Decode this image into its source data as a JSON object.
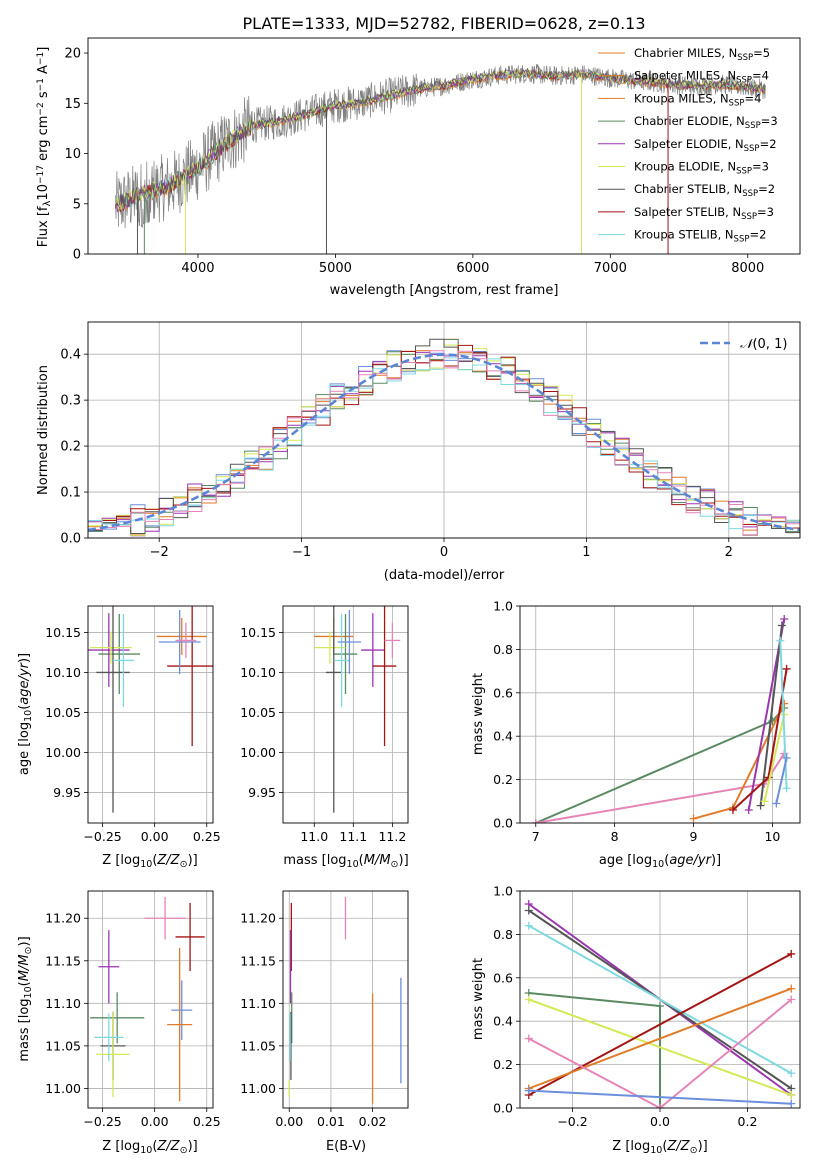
{
  "colors": {
    "blue": "#6a8fdc",
    "orange": "#e07b2a",
    "green": "#5a8a62",
    "purple": "#9b35b0",
    "yellow": "#d4e85a",
    "grey": "#555555",
    "red": "#a31515",
    "cyan": "#7fd8e0",
    "pink": "#e584b6",
    "teal": "#7fe0c8",
    "spectrum": "#808080"
  },
  "chart_data": [
    {
      "id": "spectrum",
      "type": "line",
      "title": "PLATE=1333, MJD=52782, FIBERID=0628, z=0.13",
      "xlabel": "wavelength [Angstrom, rest frame]",
      "ylabel": "Flux [f",
      "xlim": [
        3200,
        8380
      ],
      "ylim": [
        0,
        21.5
      ],
      "xticks": [
        "4000",
        "5000",
        "6000",
        "7000",
        "8000"
      ],
      "yticks": [
        "0",
        "5",
        "10",
        "15",
        "20"
      ],
      "legend": [
        {
          "label": "Chabrier MILES, N",
          "nssp": "=5",
          "color": "orange"
        },
        {
          "label": "Salpeter MILES, N",
          "nssp": "=4",
          "color": "orange"
        },
        {
          "label": "Kroupa MILES, N",
          "nssp": "=4",
          "color": "orange"
        },
        {
          "label": "Chabrier ELODIE, N",
          "nssp": "=3",
          "color": "green"
        },
        {
          "label": "Salpeter ELODIE, N",
          "nssp": "=2",
          "color": "purple"
        },
        {
          "label": "Kroupa ELODIE, N",
          "nssp": "=3",
          "color": "yellow"
        },
        {
          "label": "Chabrier STELIB, N",
          "nssp": "=2",
          "color": "grey"
        },
        {
          "label": "Salpeter STELIB, N",
          "nssp": "=3",
          "color": "red"
        },
        {
          "label": "Kroupa STELIB, N",
          "nssp": "=2",
          "color": "cyan"
        }
      ],
      "continuum": [
        [
          3400,
          4.8
        ],
        [
          3600,
          6.0
        ],
        [
          3800,
          6.8
        ],
        [
          4000,
          8.6
        ],
        [
          4200,
          11.0
        ],
        [
          4400,
          12.8
        ],
        [
          4600,
          13.2
        ],
        [
          4800,
          14.0
        ],
        [
          5000,
          14.8
        ],
        [
          5200,
          15.1
        ],
        [
          5400,
          15.8
        ],
        [
          5600,
          16.4
        ],
        [
          5800,
          16.8
        ],
        [
          6000,
          17.4
        ],
        [
          6200,
          17.8
        ],
        [
          6400,
          18.0
        ],
        [
          6600,
          17.7
        ],
        [
          6800,
          17.9
        ],
        [
          7000,
          17.5
        ],
        [
          7200,
          17.2
        ],
        [
          7400,
          17.0
        ],
        [
          7600,
          16.7
        ],
        [
          7800,
          16.9
        ],
        [
          8000,
          16.6
        ],
        [
          8130,
          16.4
        ]
      ],
      "dropouts": [
        {
          "x": 3560,
          "color": "grey"
        },
        {
          "x": 3610,
          "color": "green"
        },
        {
          "x": 3910,
          "color": "yellow"
        },
        {
          "x": 4935,
          "color": "grey"
        },
        {
          "x": 6790,
          "color": "yellow"
        },
        {
          "x": 7420,
          "color": "red"
        }
      ]
    },
    {
      "id": "residuals",
      "type": "bar",
      "xlabel": "(data-model)/error",
      "ylabel": "Normed distribution",
      "xlim": [
        -2.5,
        2.5
      ],
      "ylim": [
        0,
        0.47
      ],
      "xticks": [
        "-2",
        "-1",
        "0",
        "1",
        "2"
      ],
      "yticks": [
        "0.0",
        "0.1",
        "0.2",
        "0.3",
        "0.4"
      ],
      "bin_width": 0.1,
      "legend": "N(0,1)",
      "series_colors": [
        "blue",
        "orange",
        "green",
        "purple",
        "yellow",
        "grey",
        "red",
        "cyan",
        "pink"
      ]
    },
    {
      "id": "z-age",
      "type": "scatter",
      "xlabel": "Z [log",
      "ylabel": "age  [log",
      "xlim": [
        -0.32,
        0.28
      ],
      "ylim": [
        9.912,
        10.183
      ],
      "xticks": [
        "-0.25",
        "0.00",
        "0.25"
      ],
      "yticks": [
        "9.95",
        "10.00",
        "10.05",
        "10.10",
        "10.15"
      ],
      "points": [
        {
          "x": 0.13,
          "y": 10.145,
          "xerr": 0.12,
          "yerr": 0.023,
          "color": "orange"
        },
        {
          "x": -0.17,
          "y": 10.123,
          "xerr": 0.1,
          "yerr": 0.05,
          "color": "green"
        },
        {
          "x": -0.22,
          "y": 10.128,
          "xerr": 0.1,
          "yerr": 0.046,
          "color": "purple"
        },
        {
          "x": -0.21,
          "y": 10.131,
          "xerr": 0.1,
          "yerr": 0.02,
          "color": "yellow"
        },
        {
          "x": -0.2,
          "y": 10.1,
          "xerr": 0.08,
          "yerr": 0.175,
          "color": "grey"
        },
        {
          "x": 0.18,
          "y": 10.108,
          "xerr": 0.12,
          "yerr": 0.1,
          "color": "red"
        },
        {
          "x": -0.15,
          "y": 10.115,
          "xerr": 0.05,
          "yerr": 0.058,
          "color": "cyan"
        },
        {
          "x": 0.12,
          "y": 10.138,
          "xerr": 0.1,
          "yerr": 0.04,
          "color": "blue"
        },
        {
          "x": 0.15,
          "y": 10.14,
          "xerr": 0.05,
          "yerr": 0.022,
          "color": "pink"
        }
      ]
    },
    {
      "id": "mass-age",
      "type": "scatter",
      "xlabel": "mass [log",
      "ylabel": "",
      "xlim": [
        10.92,
        11.24
      ],
      "ylim": [
        9.912,
        10.183
      ],
      "xticks": [
        "11.0",
        "11.1",
        "11.2"
      ],
      "yticks": [
        "9.95",
        "10.00",
        "10.05",
        "10.10",
        "10.15"
      ],
      "points": [
        {
          "x": 11.05,
          "y": 10.145,
          "xerr": 0.05,
          "yerr": 0.023,
          "color": "orange"
        },
        {
          "x": 11.08,
          "y": 10.123,
          "xerr": 0.03,
          "yerr": 0.05,
          "color": "green"
        },
        {
          "x": 11.15,
          "y": 10.128,
          "xerr": 0.03,
          "yerr": 0.046,
          "color": "purple"
        },
        {
          "x": 11.04,
          "y": 10.131,
          "xerr": 0.04,
          "yerr": 0.02,
          "color": "yellow"
        },
        {
          "x": 11.05,
          "y": 10.1,
          "xerr": 0.02,
          "yerr": 0.175,
          "color": "grey"
        },
        {
          "x": 11.18,
          "y": 10.108,
          "xerr": 0.03,
          "yerr": 0.1,
          "color": "red"
        },
        {
          "x": 11.07,
          "y": 10.115,
          "xerr": 0.02,
          "yerr": 0.058,
          "color": "cyan"
        },
        {
          "x": 11.09,
          "y": 10.138,
          "xerr": 0.03,
          "yerr": 0.04,
          "color": "blue"
        },
        {
          "x": 11.2,
          "y": 10.14,
          "xerr": 0.02,
          "yerr": 0.022,
          "color": "pink"
        }
      ]
    },
    {
      "id": "age-weight",
      "type": "line",
      "xlabel": "age  [log",
      "ylabel": "mass weight",
      "xlim": [
        6.8,
        10.35
      ],
      "ylim": [
        0,
        1.0
      ],
      "xticks": [
        "7",
        "8",
        "9",
        "10"
      ],
      "yticks": [
        "0.0",
        "0.2",
        "0.4",
        "0.6",
        "0.8",
        "1.0"
      ],
      "series": [
        {
          "color": "green",
          "points": [
            [
              7.0,
              0.0
            ],
            [
              10.0,
              0.47
            ],
            [
              10.15,
              0.53
            ]
          ]
        },
        {
          "color": "pink",
          "points": [
            [
              7.0,
              0.0
            ],
            [
              9.9,
              0.18
            ],
            [
              10.15,
              0.32
            ]
          ]
        },
        {
          "color": "orange",
          "points": [
            [
              9.0,
              0.02
            ],
            [
              9.5,
              0.07
            ],
            [
              10.15,
              0.55
            ]
          ]
        },
        {
          "color": "purple",
          "points": [
            [
              9.7,
              0.06
            ],
            [
              10.15,
              0.94
            ]
          ]
        },
        {
          "color": "grey",
          "points": [
            [
              9.85,
              0.08
            ],
            [
              10.12,
              0.91
            ]
          ]
        },
        {
          "color": "red",
          "points": [
            [
              9.5,
              0.06
            ],
            [
              9.95,
              0.21
            ],
            [
              10.18,
              0.71
            ]
          ]
        },
        {
          "color": "yellow",
          "points": [
            [
              9.9,
              0.1
            ],
            [
              10.15,
              0.5
            ]
          ]
        },
        {
          "color": "cyan",
          "points": [
            [
              10.1,
              0.84
            ],
            [
              10.18,
              0.16
            ]
          ]
        },
        {
          "color": "blue",
          "points": [
            [
              10.05,
              0.09
            ],
            [
              10.18,
              0.3
            ]
          ]
        }
      ]
    },
    {
      "id": "z-mass",
      "type": "scatter",
      "xlabel": "Z [log",
      "ylabel": "mass [log",
      "xlim": [
        -0.32,
        0.28
      ],
      "ylim": [
        10.977,
        11.232
      ],
      "xticks": [
        "-0.25",
        "0.00",
        "0.25"
      ],
      "yticks": [
        "11.00",
        "11.05",
        "11.10",
        "11.15",
        "11.20"
      ],
      "points": [
        {
          "x": 0.17,
          "y": 11.178,
          "xerr": 0.07,
          "yerr": 0.04,
          "color": "red"
        },
        {
          "x": 0.05,
          "y": 11.2,
          "xerr": 0.1,
          "yerr": 0.025,
          "color": "pink"
        },
        {
          "x": -0.22,
          "y": 11.143,
          "xerr": 0.05,
          "yerr": 0.043,
          "color": "purple"
        },
        {
          "x": 0.13,
          "y": 11.092,
          "xerr": 0.05,
          "yerr": 0.035,
          "color": "blue"
        },
        {
          "x": 0.12,
          "y": 11.075,
          "xerr": 0.06,
          "yerr": 0.09,
          "color": "orange"
        },
        {
          "x": -0.18,
          "y": 11.083,
          "xerr": 0.13,
          "yerr": 0.03,
          "color": "green"
        },
        {
          "x": -0.2,
          "y": 11.05,
          "xerr": 0.06,
          "yerr": 0.04,
          "color": "grey"
        },
        {
          "x": -0.2,
          "y": 11.04,
          "xerr": 0.08,
          "yerr": 0.05,
          "color": "yellow"
        },
        {
          "x": -0.22,
          "y": 11.06,
          "xerr": 0.07,
          "yerr": 0.028,
          "color": "cyan"
        }
      ]
    },
    {
      "id": "ebv-mass",
      "type": "scatter",
      "xlabel": "E(B-V)",
      "ylabel": "",
      "xlim": [
        -0.0015,
        0.0285
      ],
      "ylim": [
        10.977,
        11.232
      ],
      "xticks": [
        "0.00",
        "0.01",
        "0.02"
      ],
      "yticks": [
        "11.00",
        "11.05",
        "11.10",
        "11.15",
        "11.20"
      ],
      "points": [
        {
          "x": 0.0005,
          "y": 11.178,
          "yerr": 0.04,
          "color": "red"
        },
        {
          "x": 0.0135,
          "y": 11.2,
          "yerr": 0.025,
          "color": "pink"
        },
        {
          "x": 0.0003,
          "y": 11.143,
          "yerr": 0.043,
          "color": "purple"
        },
        {
          "x": 0.0268,
          "y": 11.068,
          "yerr": 0.062,
          "color": "blue"
        },
        {
          "x": 0.02,
          "y": 11.047,
          "yerr": 0.065,
          "color": "orange"
        },
        {
          "x": 0.0006,
          "y": 11.083,
          "yerr": 0.03,
          "color": "green"
        },
        {
          "x": 0.0004,
          "y": 11.05,
          "yerr": 0.04,
          "color": "grey"
        },
        {
          "x": 0.0,
          "y": 11.0,
          "yerr": 0.01,
          "color": "yellow"
        },
        {
          "x": 0.0002,
          "y": 11.06,
          "yerr": 0.028,
          "color": "cyan"
        }
      ]
    },
    {
      "id": "z-weight",
      "type": "line",
      "xlabel": "Z [log",
      "ylabel": "mass weight",
      "xlim": [
        -0.32,
        0.32
      ],
      "ylim": [
        0,
        1.0
      ],
      "xticks": [
        "-0.2",
        "0.0",
        "0.2"
      ],
      "yticks": [
        "0.0",
        "0.2",
        "0.4",
        "0.6",
        "0.8",
        "1.0"
      ],
      "series": [
        {
          "color": "purple",
          "points": [
            [
              -0.3,
              0.94
            ],
            [
              0.3,
              0.06
            ]
          ]
        },
        {
          "color": "grey",
          "points": [
            [
              -0.3,
              0.91
            ],
            [
              0.3,
              0.09
            ]
          ]
        },
        {
          "color": "cyan",
          "points": [
            [
              -0.3,
              0.84
            ],
            [
              0.3,
              0.16
            ]
          ]
        },
        {
          "color": "green",
          "points": [
            [
              -0.3,
              0.53
            ],
            [
              0.0,
              0.47
            ],
            [
              0.0,
              0.0
            ]
          ]
        },
        {
          "color": "yellow",
          "points": [
            [
              -0.3,
              0.5
            ],
            [
              0.3,
              0.06
            ]
          ]
        },
        {
          "color": "red",
          "points": [
            [
              -0.3,
              0.06
            ],
            [
              0.3,
              0.71
            ]
          ]
        },
        {
          "color": "orange",
          "points": [
            [
              -0.3,
              0.09
            ],
            [
              0.3,
              0.55
            ]
          ]
        },
        {
          "color": "pink",
          "points": [
            [
              -0.3,
              0.32
            ],
            [
              0.0,
              0.0
            ],
            [
              0.3,
              0.5
            ]
          ]
        },
        {
          "color": "blue",
          "points": [
            [
              -0.3,
              0.08
            ],
            [
              0.3,
              0.02
            ]
          ]
        }
      ]
    }
  ]
}
